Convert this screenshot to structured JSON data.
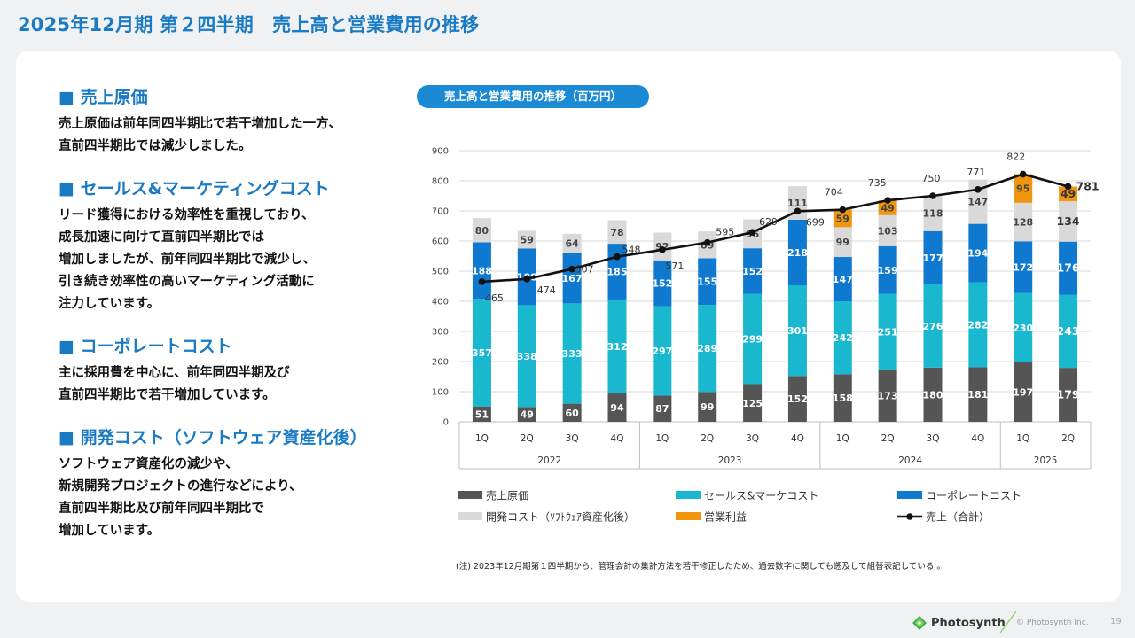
{
  "page": {
    "title": "2025年12月期 第２四半期　売上高と営業費用の推移",
    "chart_pill": "売上高と営業費用の推移（百万円）",
    "note": "(注) 2023年12月期第１四半期から、管理会計の集計方法を若干修正したため、過去数字に関しても遡及して組替表記している 。",
    "copyright": "© Photosynth Inc.",
    "page_number": "19",
    "logo_text": "Photosynth",
    "logo_icon": "photosynth-logo-icon"
  },
  "sections": [
    {
      "title": "■ 売上原価",
      "body": "売上原価は前年同四半期比で若干増加した一方、\n直前四半期比では減少しました。"
    },
    {
      "title": "■ セールス&マーケティングコスト",
      "body": "リード獲得における効率性を重視しており、\n成長加速に向けて直前四半期比では\n増加しましたが、前年同四半期比で減少し、\n引き続き効率性の高いマーケティング活動に\n注力しています。"
    },
    {
      "title": "■ コーポレートコスト",
      "body": "主に採用費を中心に、前年同四半期及び\n直前四半期比で若干増加しています。"
    },
    {
      "title": "■ 開発コスト（ソフトウェア資産化後）",
      "body": "ソフトウェア資産化の減少や、\n新規開発プロジェクトの進行などにより、\n直前四半期比及び前年同四半期比で\n増加しています。"
    }
  ],
  "chart_data": {
    "type": "bar",
    "stacked": true,
    "categories": [
      "1Q",
      "2Q",
      "3Q",
      "4Q",
      "1Q",
      "2Q",
      "3Q",
      "4Q",
      "1Q",
      "2Q",
      "3Q",
      "4Q",
      "1Q",
      "2Q"
    ],
    "groups": [
      {
        "label": "2022",
        "count": 4
      },
      {
        "label": "2023",
        "count": 4
      },
      {
        "label": "2024",
        "count": 4
      },
      {
        "label": "2025",
        "count": 2
      }
    ],
    "ylim": [
      0,
      900
    ],
    "yticks": [
      0,
      100,
      200,
      300,
      400,
      500,
      600,
      700,
      800,
      900
    ],
    "grid": true,
    "legend_position": "bottom",
    "series": [
      {
        "name": "売上原価",
        "color": "#555555",
        "label_color": "#ffffff",
        "values": [
          51,
          49,
          60,
          94,
          87,
          99,
          125,
          152,
          158,
          173,
          180,
          181,
          197,
          179
        ]
      },
      {
        "name": "セールス&マーケコスト",
        "color": "#1ab8cf",
        "label_color": "#ffffff",
        "values": [
          357,
          338,
          333,
          312,
          297,
          289,
          299,
          301,
          242,
          251,
          276,
          282,
          230,
          243
        ]
      },
      {
        "name": "コーポレートコスト",
        "color": "#0f78cf",
        "label_color": "#ffffff",
        "values": [
          188,
          188,
          167,
          185,
          152,
          155,
          152,
          218,
          147,
          159,
          177,
          194,
          172,
          176
        ]
      },
      {
        "name": "開発コスト（ｿﾌﾄｳｪｱ資産化後）",
        "color": "#d9d9d9",
        "label_color": "#444444",
        "values": [
          80,
          59,
          64,
          78,
          92,
          89,
          96,
          111,
          99,
          103,
          118,
          147,
          128,
          134
        ]
      },
      {
        "name": "営業利益",
        "color": "#f0960e",
        "label_color": "#444444",
        "values": [
          null,
          null,
          null,
          null,
          null,
          null,
          null,
          null,
          59,
          49,
          null,
          null,
          95,
          49
        ]
      }
    ],
    "line": {
      "name": "売上（合計）",
      "color": "#111111",
      "values": [
        465,
        474,
        507,
        548,
        571,
        595,
        629,
        699,
        704,
        735,
        750,
        771,
        822,
        781
      ]
    },
    "emphasis_last_column": true
  }
}
